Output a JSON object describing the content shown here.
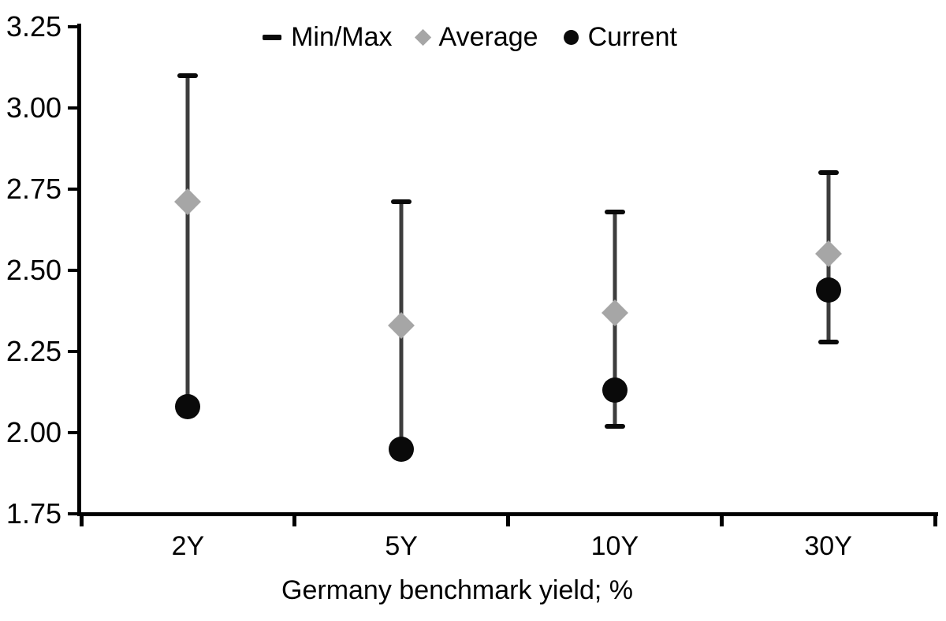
{
  "chart_data": {
    "type": "scatter",
    "subtype": "min-max-range-with-average-and-current",
    "categories": [
      "2Y",
      "5Y",
      "10Y",
      "30Y"
    ],
    "series": [
      {
        "name": "Min/Max",
        "marker": "dash",
        "min": [
          2.08,
          1.95,
          2.02,
          2.28
        ],
        "max": [
          3.1,
          2.71,
          2.68,
          2.8
        ]
      },
      {
        "name": "Average",
        "marker": "diamond",
        "values": [
          2.71,
          2.33,
          2.37,
          2.55
        ]
      },
      {
        "name": "Current",
        "marker": "circle",
        "values": [
          2.08,
          1.95,
          2.13,
          2.44
        ]
      }
    ],
    "title": "",
    "xlabel": "Germany benchmark yield; %",
    "ylabel": "",
    "ylim": [
      1.75,
      3.25
    ],
    "ytick_step": 0.25,
    "yticks": [
      "3.25",
      "3.00",
      "2.75",
      "2.50",
      "2.25",
      "2.00",
      "1.75"
    ],
    "grid": false,
    "legend_position": "top-center",
    "colors": {
      "axis": "#000000",
      "text": "#000000",
      "range_line": "#3d3d3d",
      "minmax_cap": "#0a0a0a",
      "average_fill": "#a6a6a6",
      "current_fill": "#0a0a0a",
      "background": "#ffffff"
    }
  }
}
